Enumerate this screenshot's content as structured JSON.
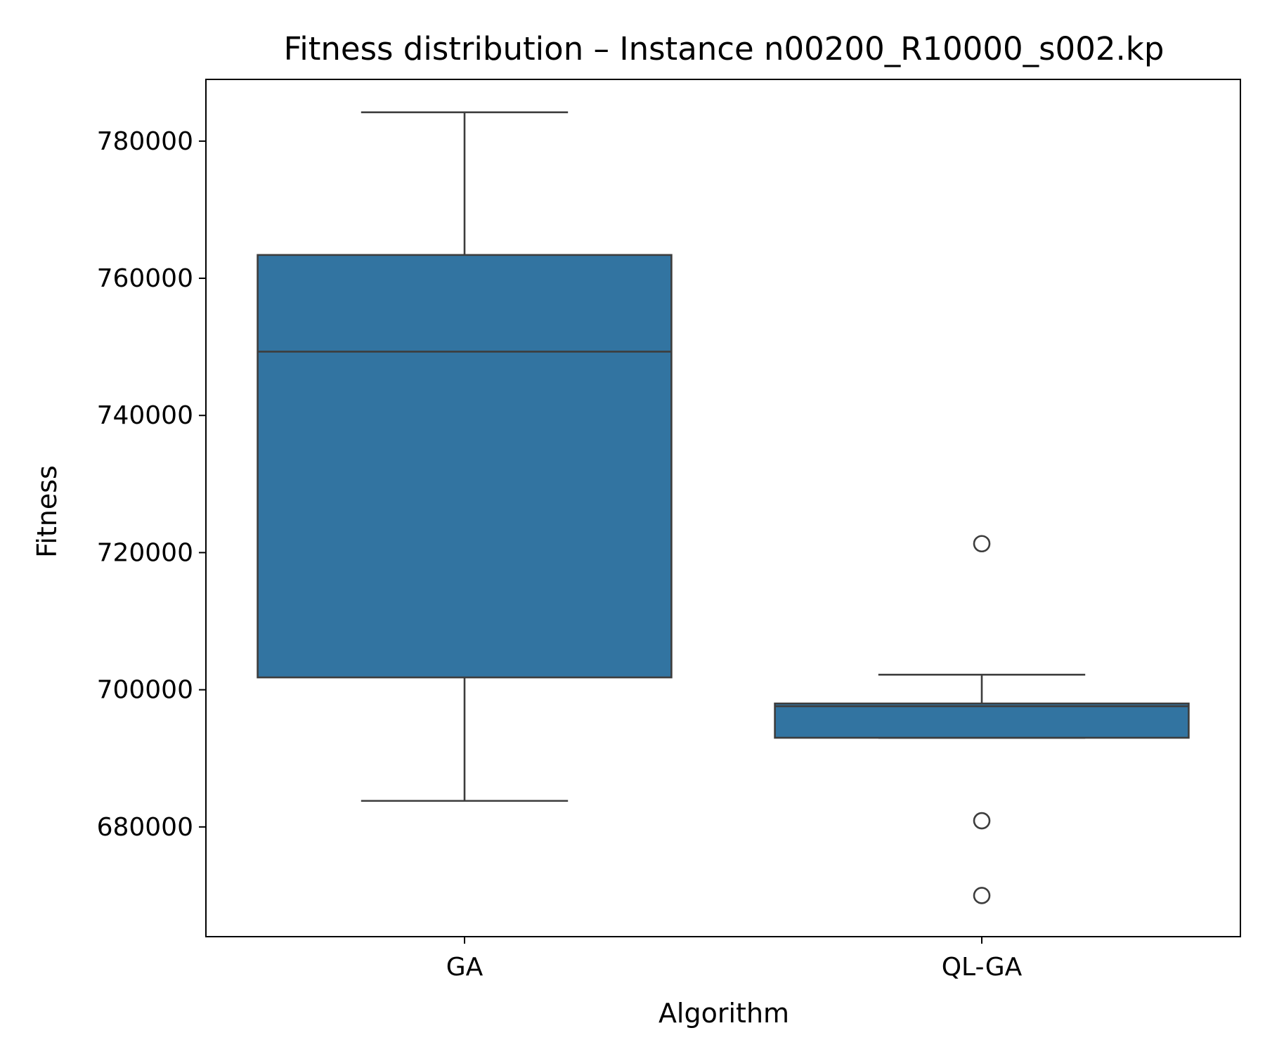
{
  "chart_data": {
    "type": "box",
    "title": "Fitness distribution – Instance n00200_R10000_s002.kp",
    "xlabel": "Algorithm",
    "ylabel": "Fitness",
    "categories": [
      "GA",
      "QL-GA"
    ],
    "ylim": [
      664000,
      789000
    ],
    "yticks": [
      680000,
      700000,
      720000,
      740000,
      760000,
      780000
    ],
    "ytick_labels": [
      "680000",
      "700000",
      "720000",
      "740000",
      "760000",
      "780000"
    ],
    "grid": false,
    "legend": "none",
    "colors": {
      "box_fill": "#3274a1",
      "line": "#3d3d3d",
      "axes": "#000000",
      "background": "#ffffff"
    },
    "boxes": [
      {
        "category": "GA",
        "whisker_low": 683800,
        "q1": 701800,
        "median": 749300,
        "q3": 763400,
        "whisker_high": 784200,
        "outliers": []
      },
      {
        "category": "QL-GA",
        "whisker_low": 693000,
        "q1": 693000,
        "median": 697600,
        "q3": 698000,
        "whisker_high": 702200,
        "outliers": [
          721300,
          680900,
          670000
        ]
      }
    ]
  }
}
